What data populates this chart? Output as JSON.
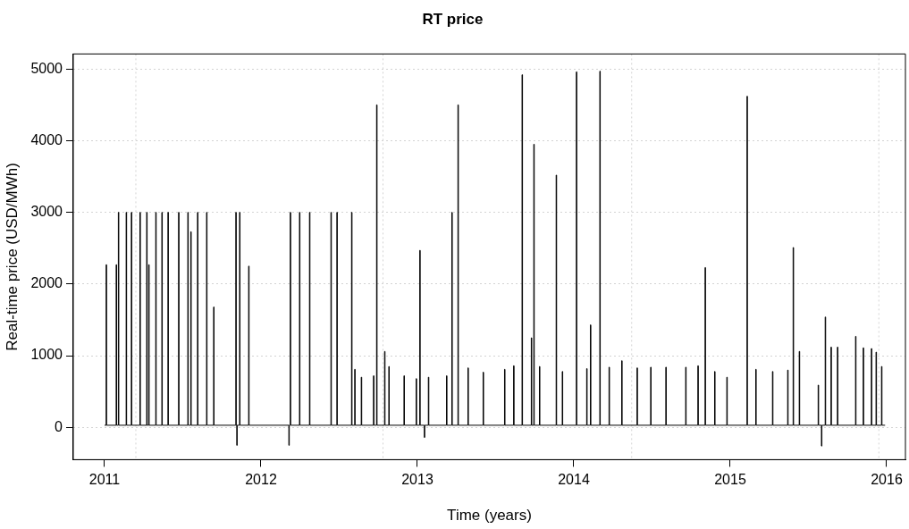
{
  "chart_data": {
    "type": "step",
    "title": "RT price",
    "xlabel": "Time (years)",
    "ylabel": "Real-time price (USD/MWh)",
    "xlim": [
      2010.8,
      2016.12
    ],
    "xticks": [
      2011,
      2012,
      2013,
      2014,
      2015,
      2016
    ],
    "ylim": [
      -450,
      5210
    ],
    "yticks": [
      0,
      1000,
      2000,
      3000,
      4000,
      5000
    ],
    "grid": "y",
    "ref_lines": [
      {
        "axis": "x",
        "value": 2011.2,
        "color": "#d3d3d3",
        "line_style": "dotted"
      },
      {
        "axis": "x",
        "value": 2012.78,
        "color": "#d3d3d3",
        "line_style": "dotted"
      },
      {
        "axis": "x",
        "value": 2014.37,
        "color": "#d3d3d3",
        "line_style": "dotted"
      },
      {
        "axis": "x",
        "value": 2015.95,
        "color": "#d3d3d3",
        "line_style": "dotted"
      }
    ],
    "series": [
      {
        "color": "#000000",
        "x": [
          2011.0,
          2011.01,
          2011.013,
          2011.074,
          2011.077,
          2011.088,
          2011.091,
          2011.138,
          2011.141,
          2011.171,
          2011.174,
          2011.226,
          2011.229,
          2011.269,
          2011.272,
          2011.282,
          2011.285,
          2011.327,
          2011.33,
          2011.366,
          2011.369,
          2011.405,
          2011.408,
          2011.473,
          2011.476,
          2011.532,
          2011.535,
          2011.551,
          2011.554,
          2011.594,
          2011.597,
          2011.652,
          2011.655,
          2011.697,
          2011.7,
          2011.839,
          2011.842,
          2011.845,
          2011.848,
          2011.863,
          2011.866,
          2011.921,
          2011.924,
          2012.178,
          2012.181,
          2012.187,
          2012.19,
          2012.246,
          2012.249,
          2012.31,
          2012.313,
          2012.447,
          2012.45,
          2012.485,
          2012.488,
          2012.579,
          2012.582,
          2012.599,
          2012.602,
          2012.641,
          2012.644,
          2012.719,
          2012.722,
          2012.739,
          2012.742,
          2012.79,
          2012.793,
          2012.817,
          2012.82,
          2012.914,
          2012.917,
          2012.992,
          2012.995,
          2013.015,
          2013.018,
          2013.044,
          2013.047,
          2013.07,
          2013.073,
          2013.186,
          2013.189,
          2013.22,
          2013.223,
          2013.259,
          2013.262,
          2013.323,
          2013.326,
          2013.42,
          2013.423,
          2013.557,
          2013.56,
          2013.615,
          2013.618,
          2013.669,
          2013.672,
          2013.728,
          2013.731,
          2013.744,
          2013.747,
          2013.78,
          2013.783,
          2013.887,
          2013.89,
          2013.926,
          2013.929,
          2014.016,
          2014.019,
          2014.082,
          2014.085,
          2014.106,
          2014.109,
          2014.166,
          2014.169,
          2014.225,
          2014.228,
          2014.306,
          2014.309,
          2014.404,
          2014.407,
          2014.491,
          2014.494,
          2014.588,
          2014.591,
          2014.715,
          2014.718,
          2014.793,
          2014.796,
          2014.839,
          2014.842,
          2014.9,
          2014.903,
          2014.978,
          2014.981,
          2015.107,
          2015.11,
          2015.163,
          2015.166,
          2015.27,
          2015.273,
          2015.367,
          2015.37,
          2015.402,
          2015.405,
          2015.441,
          2015.444,
          2015.562,
          2015.565,
          2015.583,
          2015.586,
          2015.607,
          2015.61,
          2015.644,
          2015.647,
          2015.685,
          2015.688,
          2015.801,
          2015.804,
          2015.85,
          2015.853,
          2015.902,
          2015.905,
          2015.932,
          2015.935,
          2015.967,
          2015.97,
          2015.99
        ],
        "values": [
          30,
          2270,
          30,
          2270,
          30,
          3000,
          30,
          3000,
          30,
          3000,
          30,
          3000,
          30,
          3000,
          30,
          2270,
          30,
          3000,
          30,
          3000,
          30,
          3000,
          30,
          3000,
          30,
          3000,
          30,
          2730,
          30,
          3000,
          30,
          3000,
          30,
          1680,
          30,
          3000,
          30,
          -250,
          30,
          3000,
          30,
          2250,
          30,
          -250,
          30,
          3000,
          30,
          3000,
          30,
          3000,
          30,
          3000,
          30,
          3000,
          30,
          3000,
          30,
          810,
          30,
          700,
          30,
          720,
          30,
          4500,
          30,
          1060,
          30,
          850,
          30,
          720,
          30,
          680,
          30,
          2470,
          30,
          -140,
          30,
          700,
          30,
          720,
          30,
          3000,
          30,
          4500,
          30,
          830,
          30,
          770,
          30,
          810,
          30,
          860,
          30,
          4920,
          30,
          1250,
          30,
          3950,
          30,
          850,
          30,
          3520,
          30,
          780,
          30,
          4960,
          30,
          820,
          30,
          1430,
          30,
          4970,
          30,
          840,
          30,
          930,
          30,
          830,
          30,
          840,
          30,
          840,
          30,
          840,
          30,
          860,
          30,
          2230,
          30,
          780,
          30,
          700,
          30,
          4620,
          30,
          810,
          30,
          780,
          30,
          800,
          30,
          2510,
          30,
          1060,
          30,
          590,
          30,
          -260,
          30,
          1540,
          30,
          1120,
          30,
          1120,
          30,
          1270,
          30,
          1110,
          30,
          1100,
          30,
          1050,
          30,
          850,
          30,
          30
        ]
      }
    ]
  }
}
